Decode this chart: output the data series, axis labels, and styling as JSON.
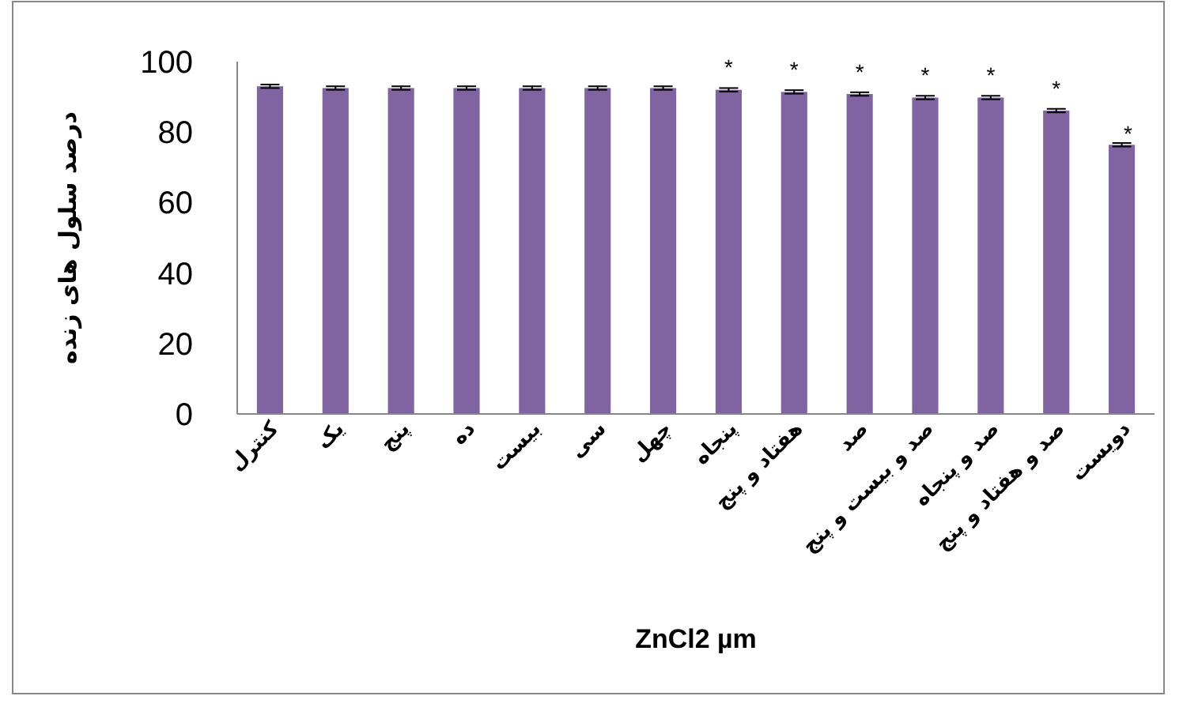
{
  "chart_data": {
    "type": "bar",
    "xlabel": "ZnCl2 µm",
    "ylabel": "درصد سلول های زنده",
    "categories": [
      "کنترل",
      "یک",
      "پنج",
      "ده",
      "بیست",
      "سی",
      "چهل",
      "پنجاه",
      "هفتاد و پنج",
      "صد",
      "صد و بیست و پنج",
      "صد و پنجاه",
      "صد و هفتاد و پنج",
      "دویست"
    ],
    "values": [
      93,
      92.5,
      92.5,
      92.5,
      92.5,
      92.5,
      92.5,
      92,
      91.4,
      90.8,
      89.8,
      89.8,
      86.1,
      76.4
    ],
    "errors": [
      0.5,
      0.5,
      0.5,
      0.5,
      0.5,
      0.5,
      0.5,
      0.5,
      0.5,
      0.5,
      0.5,
      0.5,
      0.5,
      0.5
    ],
    "color": "#8064a2",
    "ylim": [
      0,
      100
    ],
    "yticks": [
      0,
      20,
      40,
      60,
      80,
      100
    ],
    "grid": false,
    "annotations": [
      {
        "text": "*",
        "x": "پنجاه",
        "y": 92
      },
      {
        "text": "*",
        "x": "هفتاد و پنج",
        "y": 91.4
      },
      {
        "text": "*",
        "x": "صد",
        "y": 90.8
      },
      {
        "text": "*",
        "x": "صد و بیست و پنج",
        "y": 89.8
      },
      {
        "text": "*",
        "x": "صد و پنجاه",
        "y": 89.8
      },
      {
        "text": "*",
        "x": "صد و هفتاد و پنج",
        "y": 86.1
      },
      {
        "text": "*",
        "x": "دویست",
        "y": 76.4
      }
    ]
  }
}
